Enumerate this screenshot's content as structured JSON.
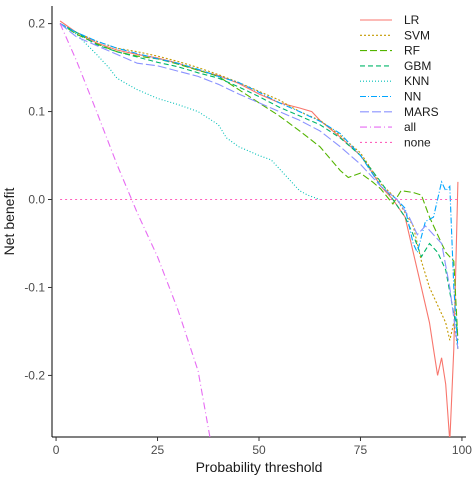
{
  "chart_data": {
    "type": "line",
    "xlabel": "Probability threshold",
    "ylabel": "Net benefit",
    "xlim": [
      -1,
      101
    ],
    "ylim": [
      -0.27,
      0.22
    ],
    "x_ticks": [
      0,
      25,
      50,
      75,
      100
    ],
    "y_ticks": [
      0.2,
      0.1,
      0.0,
      -0.1,
      -0.2
    ],
    "x_tick_labels": [
      "0",
      "25",
      "50",
      "75",
      "100"
    ],
    "y_tick_labels": [
      "0.2",
      "0.1",
      "0.0",
      "-0.1",
      "-0.2"
    ],
    "grid": false,
    "legend_position": "top-right",
    "series": [
      {
        "name": "LR",
        "color": "#F8766D",
        "dash": "solid",
        "points": [
          [
            1,
            0.203
          ],
          [
            5,
            0.19
          ],
          [
            10,
            0.178
          ],
          [
            15,
            0.17
          ],
          [
            20,
            0.165
          ],
          [
            25,
            0.161
          ],
          [
            30,
            0.155
          ],
          [
            35,
            0.147
          ],
          [
            40,
            0.141
          ],
          [
            45,
            0.132
          ],
          [
            50,
            0.12
          ],
          [
            55,
            0.11
          ],
          [
            60,
            0.104
          ],
          [
            63,
            0.1
          ],
          [
            65,
            0.09
          ],
          [
            70,
            0.071
          ],
          [
            75,
            0.05
          ],
          [
            78,
            0.03
          ],
          [
            80,
            0.015
          ],
          [
            83,
            0.0
          ],
          [
            86,
            -0.02
          ],
          [
            88,
            -0.06
          ],
          [
            90,
            -0.1
          ],
          [
            92,
            -0.14
          ],
          [
            93,
            -0.17
          ],
          [
            94,
            -0.2
          ],
          [
            95,
            -0.18
          ],
          [
            96,
            -0.21
          ],
          [
            97,
            -0.275
          ],
          [
            98,
            -0.17
          ],
          [
            99,
            0.02
          ]
        ]
      },
      {
        "name": "SVM",
        "color": "#C49A00",
        "dash": "2,2",
        "points": [
          [
            1,
            0.2
          ],
          [
            5,
            0.19
          ],
          [
            10,
            0.18
          ],
          [
            15,
            0.172
          ],
          [
            20,
            0.168
          ],
          [
            25,
            0.163
          ],
          [
            30,
            0.157
          ],
          [
            35,
            0.15
          ],
          [
            40,
            0.142
          ],
          [
            45,
            0.133
          ],
          [
            50,
            0.123
          ],
          [
            55,
            0.113
          ],
          [
            60,
            0.1
          ],
          [
            65,
            0.09
          ],
          [
            70,
            0.073
          ],
          [
            75,
            0.053
          ],
          [
            80,
            0.018
          ],
          [
            84,
            0.0
          ],
          [
            88,
            -0.03
          ],
          [
            90,
            -0.07
          ],
          [
            92,
            -0.1
          ],
          [
            94,
            -0.12
          ],
          [
            96,
            -0.14
          ],
          [
            97,
            -0.16
          ],
          [
            98,
            -0.14
          ],
          [
            99,
            -0.17
          ]
        ]
      },
      {
        "name": "RF",
        "color": "#53B400",
        "dash": "7,3",
        "points": [
          [
            1,
            0.2
          ],
          [
            5,
            0.188
          ],
          [
            10,
            0.177
          ],
          [
            15,
            0.168
          ],
          [
            20,
            0.163
          ],
          [
            25,
            0.16
          ],
          [
            30,
            0.154
          ],
          [
            35,
            0.147
          ],
          [
            40,
            0.14
          ],
          [
            45,
            0.125
          ],
          [
            50,
            0.11
          ],
          [
            55,
            0.095
          ],
          [
            60,
            0.078
          ],
          [
            65,
            0.06
          ],
          [
            70,
            0.033
          ],
          [
            72,
            0.025
          ],
          [
            75,
            0.03
          ],
          [
            78,
            0.02
          ],
          [
            80,
            0.012
          ],
          [
            83,
            -0.005
          ],
          [
            85,
            0.01
          ],
          [
            88,
            0.008
          ],
          [
            90,
            0.005
          ],
          [
            92,
            -0.02
          ],
          [
            94,
            -0.04
          ],
          [
            96,
            -0.06
          ],
          [
            98,
            -0.07
          ],
          [
            99,
            -0.16
          ]
        ]
      },
      {
        "name": "GBM",
        "color": "#00B66A",
        "dash": "5,3",
        "points": [
          [
            1,
            0.2
          ],
          [
            5,
            0.19
          ],
          [
            10,
            0.176
          ],
          [
            15,
            0.168
          ],
          [
            20,
            0.162
          ],
          [
            25,
            0.156
          ],
          [
            30,
            0.151
          ],
          [
            35,
            0.144
          ],
          [
            40,
            0.138
          ],
          [
            45,
            0.128
          ],
          [
            50,
            0.117
          ],
          [
            55,
            0.105
          ],
          [
            60,
            0.095
          ],
          [
            65,
            0.085
          ],
          [
            70,
            0.07
          ],
          [
            75,
            0.05
          ],
          [
            80,
            0.02
          ],
          [
            83,
            0.0
          ],
          [
            86,
            -0.02
          ],
          [
            88,
            -0.04
          ],
          [
            90,
            -0.065
          ],
          [
            92,
            -0.05
          ],
          [
            94,
            -0.06
          ],
          [
            96,
            -0.08
          ],
          [
            98,
            -0.13
          ],
          [
            99,
            -0.15
          ]
        ]
      },
      {
        "name": "KNN",
        "color": "#00C0B8",
        "dash": "1,2",
        "points": [
          [
            1,
            0.2
          ],
          [
            5,
            0.188
          ],
          [
            10,
            0.165
          ],
          [
            13,
            0.15
          ],
          [
            15,
            0.138
          ],
          [
            18,
            0.13
          ],
          [
            20,
            0.125
          ],
          [
            25,
            0.115
          ],
          [
            30,
            0.108
          ],
          [
            35,
            0.1
          ],
          [
            40,
            0.085
          ],
          [
            42,
            0.07
          ],
          [
            45,
            0.06
          ],
          [
            50,
            0.05
          ],
          [
            53,
            0.045
          ],
          [
            55,
            0.035
          ],
          [
            58,
            0.02
          ],
          [
            60,
            0.01
          ],
          [
            62,
            0.005
          ],
          [
            65,
            0.0
          ]
        ]
      },
      {
        "name": "NN",
        "color": "#00A5FF",
        "dash": "6,2,1,2",
        "points": [
          [
            1,
            0.2
          ],
          [
            5,
            0.19
          ],
          [
            10,
            0.18
          ],
          [
            15,
            0.172
          ],
          [
            20,
            0.166
          ],
          [
            25,
            0.16
          ],
          [
            30,
            0.155
          ],
          [
            35,
            0.148
          ],
          [
            40,
            0.14
          ],
          [
            45,
            0.133
          ],
          [
            50,
            0.122
          ],
          [
            55,
            0.11
          ],
          [
            60,
            0.1
          ],
          [
            65,
            0.089
          ],
          [
            70,
            0.075
          ],
          [
            75,
            0.05
          ],
          [
            80,
            0.015
          ],
          [
            84,
            0.0
          ],
          [
            86,
            -0.01
          ],
          [
            88,
            -0.05
          ],
          [
            89,
            -0.06
          ],
          [
            91,
            -0.025
          ],
          [
            93,
            -0.02
          ],
          [
            95,
            0.02
          ],
          [
            96,
            0.01
          ],
          [
            97,
            0.015
          ],
          [
            98,
            -0.1
          ],
          [
            99,
            -0.17
          ]
        ]
      },
      {
        "name": "MARS",
        "color": "#8B93FF",
        "dash": "9,3",
        "points": [
          [
            1,
            0.2
          ],
          [
            5,
            0.185
          ],
          [
            10,
            0.175
          ],
          [
            15,
            0.165
          ],
          [
            20,
            0.155
          ],
          [
            25,
            0.152
          ],
          [
            30,
            0.146
          ],
          [
            35,
            0.14
          ],
          [
            40,
            0.131
          ],
          [
            45,
            0.12
          ],
          [
            50,
            0.11
          ],
          [
            55,
            0.1
          ],
          [
            60,
            0.09
          ],
          [
            65,
            0.078
          ],
          [
            70,
            0.06
          ],
          [
            75,
            0.04
          ],
          [
            80,
            0.015
          ],
          [
            84,
            0.0
          ],
          [
            87,
            -0.02
          ],
          [
            89,
            -0.04
          ],
          [
            91,
            -0.03
          ],
          [
            93,
            -0.04
          ],
          [
            95,
            -0.05
          ],
          [
            97,
            -0.1
          ],
          [
            99,
            -0.17
          ]
        ]
      },
      {
        "name": "all",
        "color": "#E76BF3",
        "dash": "7,3,1,3",
        "points": [
          [
            1,
            0.2
          ],
          [
            5,
            0.158
          ],
          [
            10,
            0.1
          ],
          [
            15,
            0.04
          ],
          [
            20,
            -0.015
          ],
          [
            25,
            -0.065
          ],
          [
            30,
            -0.125
          ],
          [
            35,
            -0.195
          ],
          [
            37.9,
            -0.27
          ]
        ]
      },
      {
        "name": "none",
        "color": "#FF62BC",
        "dash": "2,3",
        "points": [
          [
            1,
            0.0
          ],
          [
            99,
            0.0
          ]
        ]
      }
    ]
  }
}
